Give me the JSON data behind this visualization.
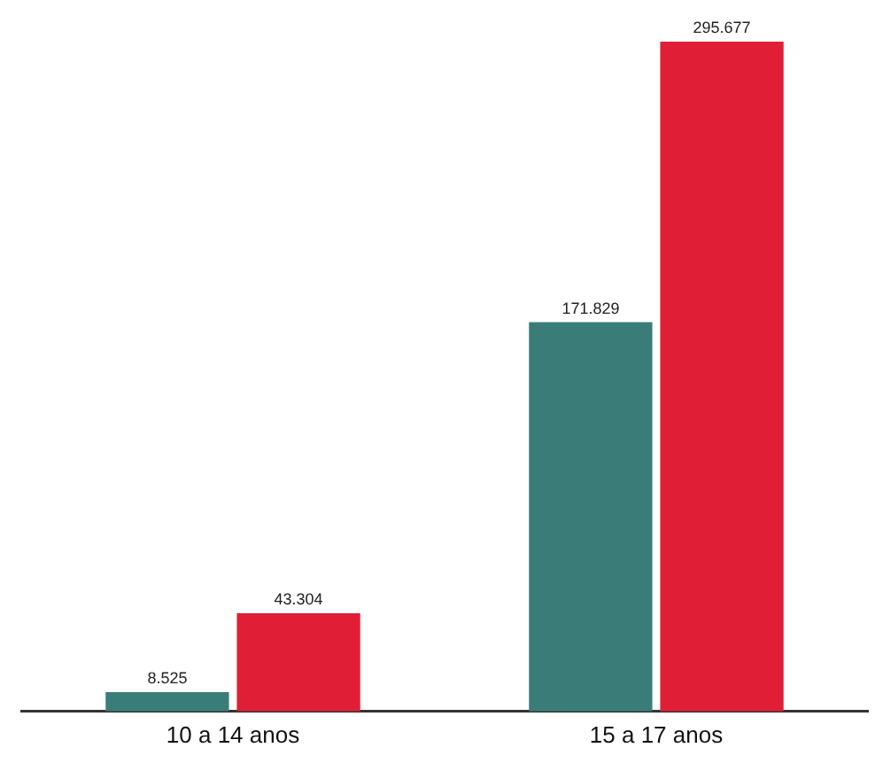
{
  "chart_data": {
    "type": "bar",
    "categories": [
      "10 a 14 anos",
      "15 a 17 anos"
    ],
    "series": [
      {
        "color": "#3a7d78",
        "values": [
          8525,
          171829
        ],
        "value_labels": [
          "8.525",
          "171.829"
        ]
      },
      {
        "color": "#e01f36",
        "values": [
          43304,
          295677
        ],
        "value_labels": [
          "43.304",
          "295.677"
        ]
      }
    ],
    "tick_labels": "x",
    "grid": false,
    "legend": false
  }
}
